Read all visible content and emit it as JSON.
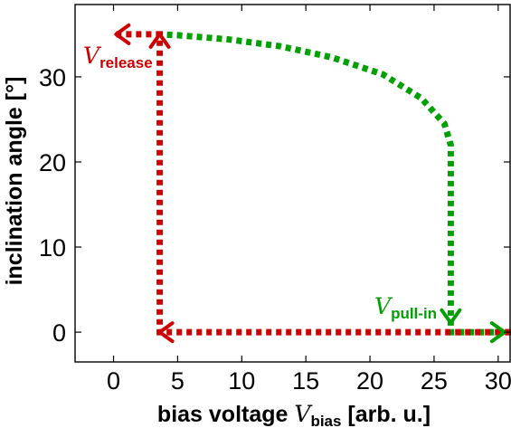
{
  "chart_data": {
    "type": "line",
    "xlabel": {
      "prefix": "bias voltage ",
      "var": "V",
      "sub": "bias",
      "suffix": " [arb. u.]"
    },
    "ylabel": "inclination angle [°]",
    "xlim": [
      -3,
      31
    ],
    "ylim": [
      -3.5,
      38.5
    ],
    "xticks": [
      0,
      5,
      10,
      15,
      20,
      25,
      30
    ],
    "yticks": [
      0,
      10,
      20,
      30
    ],
    "grid": false,
    "series": [
      {
        "color": "#00a000",
        "style": "dotted",
        "points": [
          [
            32,
            0
          ],
          [
            26.3,
            0
          ],
          [
            26.3,
            22
          ],
          [
            25.8,
            24.5
          ],
          [
            24,
            27.5
          ],
          [
            21,
            30.3
          ],
          [
            17,
            32.3
          ],
          [
            13,
            33.6
          ],
          [
            9,
            34.4
          ],
          [
            5,
            34.9
          ],
          [
            3.5,
            35
          ]
        ]
      },
      {
        "color": "#cc0000",
        "style": "dotted",
        "points": [
          [
            0.2,
            35
          ],
          [
            3.6,
            35
          ],
          [
            3.6,
            0
          ],
          [
            32,
            0
          ]
        ]
      }
    ],
    "annotations": [
      {
        "var": "V",
        "sub": "release",
        "color": "#cc0000"
      },
      {
        "var": "V",
        "sub": "pull-in",
        "color": "#00a000"
      }
    ],
    "colors": {
      "red": "#cc0000",
      "green": "#00a000"
    }
  }
}
